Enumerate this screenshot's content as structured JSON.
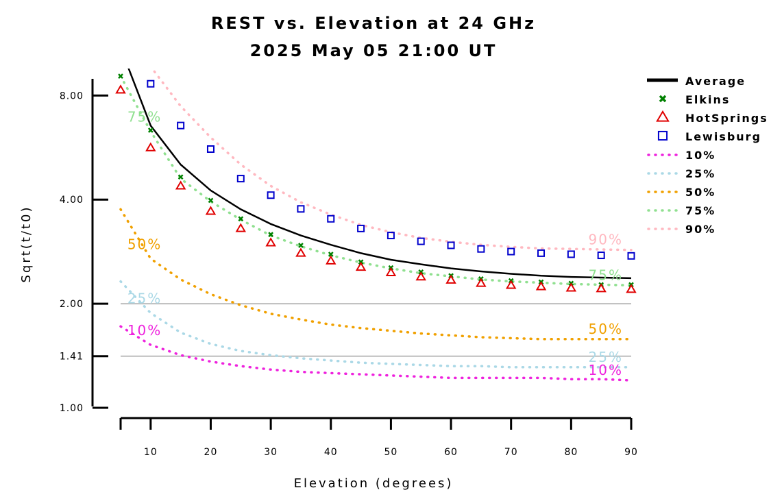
{
  "chart_data": {
    "type": "line",
    "title": "REST vs. Elevation at 24 GHz",
    "subtitle": "2025 May 05 21:00 UT",
    "xlabel": "Elevation (degrees)",
    "ylabel": "Sqrt(t/t0)",
    "x_scale": "linear",
    "y_scale": "log",
    "xlim": [
      5,
      90
    ],
    "ylim": [
      1.0,
      9.4
    ],
    "x_ticks": [
      10,
      20,
      30,
      40,
      50,
      60,
      70,
      80,
      90
    ],
    "x_tick_labels": [
      "10",
      "20",
      "30",
      "40",
      "50",
      "60",
      "70",
      "80",
      "90"
    ],
    "y_ticks": [
      1.0,
      1.41,
      2.0,
      4.0,
      8.0
    ],
    "y_tick_labels": [
      "1.00",
      "1.41",
      "2.00",
      "4.00",
      "8.00"
    ],
    "reference_lines": [
      1.41,
      2.0
    ],
    "reference_line_color": "#bdbdbd",
    "x": [
      5,
      10,
      15,
      20,
      25,
      30,
      35,
      40,
      45,
      50,
      55,
      60,
      65,
      70,
      75,
      80,
      85,
      90
    ],
    "series": [
      {
        "name": "Average",
        "style": "line",
        "color": "#000000",
        "values": [
          11.0,
          6.55,
          5.05,
          4.25,
          3.75,
          3.4,
          3.15,
          2.96,
          2.8,
          2.68,
          2.6,
          2.53,
          2.48,
          2.44,
          2.41,
          2.39,
          2.38,
          2.37
        ]
      },
      {
        "name": "Elkins",
        "style": "x-marker",
        "color": "#008000",
        "values": [
          9.1,
          6.35,
          4.65,
          3.98,
          3.52,
          3.17,
          2.95,
          2.78,
          2.64,
          2.54,
          2.47,
          2.41,
          2.36,
          2.33,
          2.31,
          2.29,
          2.27,
          2.27
        ]
      },
      {
        "name": "HotSprings",
        "style": "triangle-marker",
        "color": "#e00000",
        "values": [
          8.3,
          5.65,
          4.38,
          3.7,
          3.3,
          3.0,
          2.8,
          2.66,
          2.55,
          2.46,
          2.39,
          2.34,
          2.29,
          2.26,
          2.24,
          2.22,
          2.21,
          2.2
        ]
      },
      {
        "name": "Lewisburg",
        "style": "square-marker",
        "color": "#0000cc",
        "values": [
          null,
          8.65,
          6.55,
          5.6,
          4.6,
          4.12,
          3.76,
          3.52,
          3.3,
          3.15,
          3.03,
          2.95,
          2.88,
          2.83,
          2.8,
          2.78,
          2.76,
          2.75
        ]
      },
      {
        "name": "10%",
        "style": "dotted",
        "color": "#ee22dd",
        "values": [
          1.72,
          1.52,
          1.42,
          1.36,
          1.32,
          1.29,
          1.27,
          1.26,
          1.25,
          1.24,
          1.23,
          1.22,
          1.22,
          1.22,
          1.22,
          1.21,
          1.21,
          1.2
        ]
      },
      {
        "name": "25%",
        "style": "dotted",
        "color": "#aad8e6",
        "values": [
          2.32,
          1.88,
          1.65,
          1.53,
          1.46,
          1.42,
          1.39,
          1.37,
          1.35,
          1.34,
          1.33,
          1.32,
          1.32,
          1.31,
          1.31,
          1.31,
          1.31,
          1.31
        ]
      },
      {
        "name": "50%",
        "style": "dotted",
        "color": "#f0a000",
        "values": [
          3.75,
          2.7,
          2.35,
          2.13,
          1.98,
          1.87,
          1.8,
          1.74,
          1.7,
          1.67,
          1.64,
          1.62,
          1.6,
          1.59,
          1.58,
          1.58,
          1.58,
          1.58
        ]
      },
      {
        "name": "75%",
        "style": "dotted",
        "color": "#90e090",
        "values": [
          9.1,
          6.3,
          4.6,
          3.95,
          3.5,
          3.15,
          2.93,
          2.76,
          2.63,
          2.53,
          2.45,
          2.4,
          2.35,
          2.32,
          2.3,
          2.28,
          2.27,
          2.26
        ]
      },
      {
        "name": "90%",
        "style": "dotted",
        "color": "#ffb8c0",
        "values": [
          12.5,
          9.7,
          7.45,
          6.05,
          5.05,
          4.38,
          3.93,
          3.62,
          3.38,
          3.22,
          3.1,
          3.02,
          2.96,
          2.92,
          2.89,
          2.88,
          2.87,
          2.86
        ]
      }
    ],
    "legend": {
      "placement": "right",
      "entries": [
        {
          "name": "Average",
          "symbol": "line",
          "color": "#000000"
        },
        {
          "name": "Elkins",
          "symbol": "x",
          "color": "#008000"
        },
        {
          "name": "HotSprings",
          "symbol": "triangle",
          "color": "#e00000"
        },
        {
          "name": "Lewisburg",
          "symbol": "square",
          "color": "#0000cc"
        },
        {
          "name": "10%",
          "symbol": "dotted",
          "color": "#ee22dd"
        },
        {
          "name": "25%",
          "symbol": "dotted",
          "color": "#aad8e6"
        },
        {
          "name": "50%",
          "symbol": "dotted",
          "color": "#f0a000"
        },
        {
          "name": "75%",
          "symbol": "dotted",
          "color": "#90e090"
        },
        {
          "name": "90%",
          "symbol": "dotted",
          "color": "#ffb8c0"
        }
      ]
    },
    "annotations": [
      {
        "text": "75%",
        "series": "75%",
        "end": "left"
      },
      {
        "text": "50%",
        "series": "50%",
        "end": "left"
      },
      {
        "text": "25%",
        "series": "25%",
        "end": "left"
      },
      {
        "text": "10%",
        "series": "10%",
        "end": "left"
      },
      {
        "text": "90%",
        "series": "90%",
        "end": "right"
      },
      {
        "text": "75%",
        "series": "75%",
        "end": "right"
      },
      {
        "text": "50%",
        "series": "50%",
        "end": "right"
      },
      {
        "text": "25%",
        "series": "25%",
        "end": "right"
      },
      {
        "text": "10%",
        "series": "10%",
        "end": "right"
      }
    ]
  }
}
